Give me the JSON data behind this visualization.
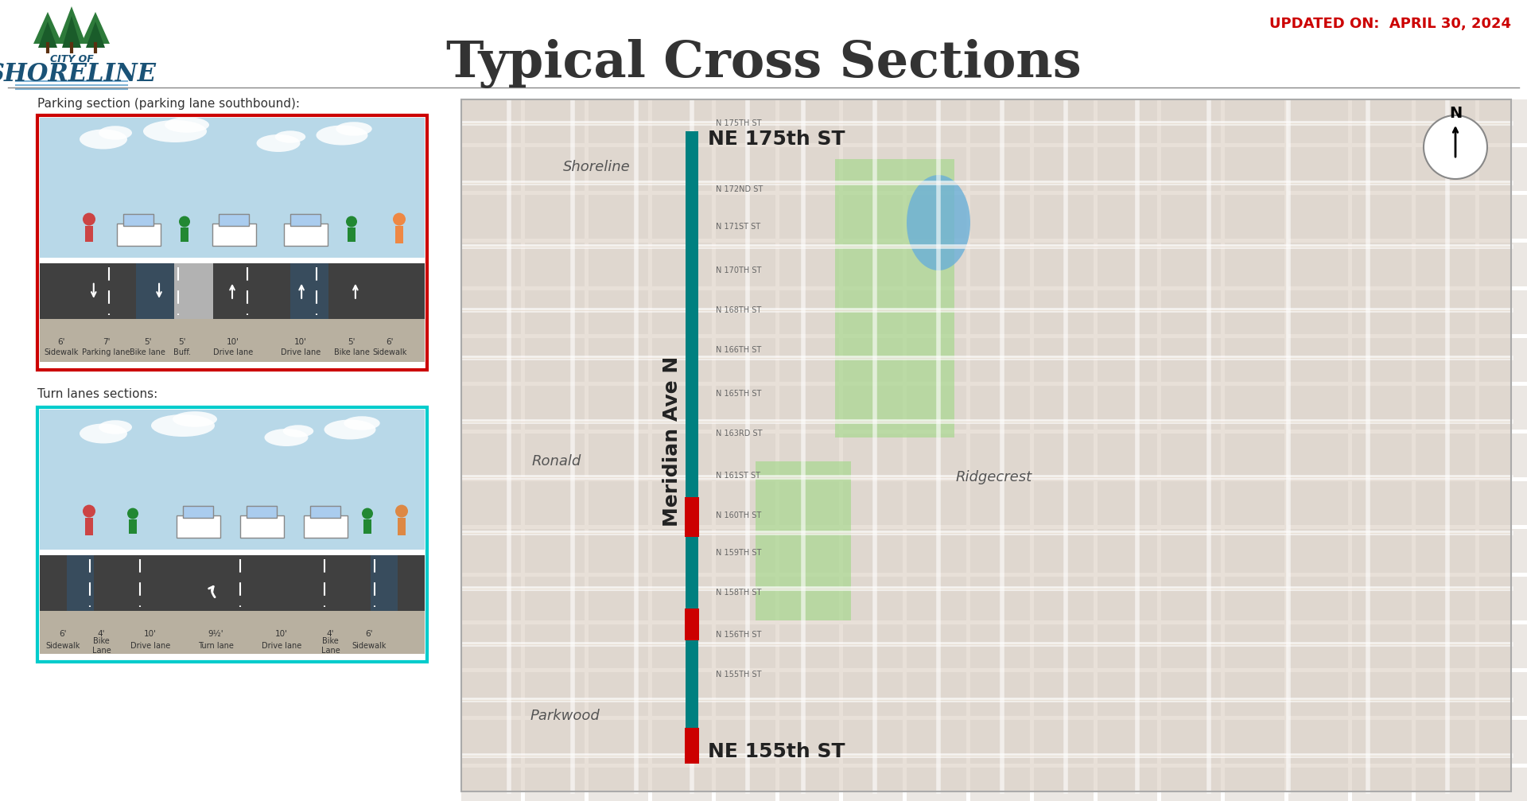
{
  "title": "Typical Cross Sections",
  "updated_text": "UPDATED ON:  APRIL 30, 2024",
  "city_name": "CITY OF",
  "city_brand": "SHORELINE",
  "section1_label": "Parking section (parking lane southbound):",
  "section2_label": "Turn lanes sections:",
  "section1_border_color": "#cc0000",
  "section2_border_color": "#00cccc",
  "sky_color": "#b8d8e8",
  "cloud_color": "#e8f0f8",
  "road_color": "#404040",
  "sidewalk_color": "#c8c0b0",
  "grass_color": "#4a7a3a",
  "bike_lane_color": "#2d6b8a",
  "background_color": "#ffffff",
  "title_color": "#333333",
  "updated_color": "#cc0000",
  "city_color": "#1a5276",
  "trees_color": "#2d7a3a",
  "section1_dimensions": [
    "6'",
    "7'",
    "5'",
    "5'",
    "10'",
    "10'",
    "5'",
    "6'"
  ],
  "section1_labels": [
    "Sidewalk",
    "Parking lane",
    "Bike lane",
    "Buff.",
    "Drive lane",
    "Drive lane",
    "Bike lane",
    "Sidewalk"
  ],
  "section2_dimensions": [
    "6'",
    "4'",
    "10'",
    "9½'",
    "10'",
    "4'",
    "6'"
  ],
  "section2_labels": [
    "Sidewalk",
    "Bike\nLane",
    "Drive lane",
    "Turn lane",
    "Drive lane",
    "Bike\nLane",
    "Sidewalk"
  ],
  "map_ne175_label": "NE 175th ST",
  "map_ne155_label": "NE 155th ST",
  "map_meridian_label": "Meridian Ave N",
  "map_shoreline_label": "Shoreline",
  "map_ronald_label": "Ronald",
  "map_parkwood_label": "Parkwood",
  "map_ridgecrest_label": "Ridgecrest",
  "teal_line_color": "#008080",
  "red_segment_color": "#cc0000",
  "separator_line_color": "#888888"
}
